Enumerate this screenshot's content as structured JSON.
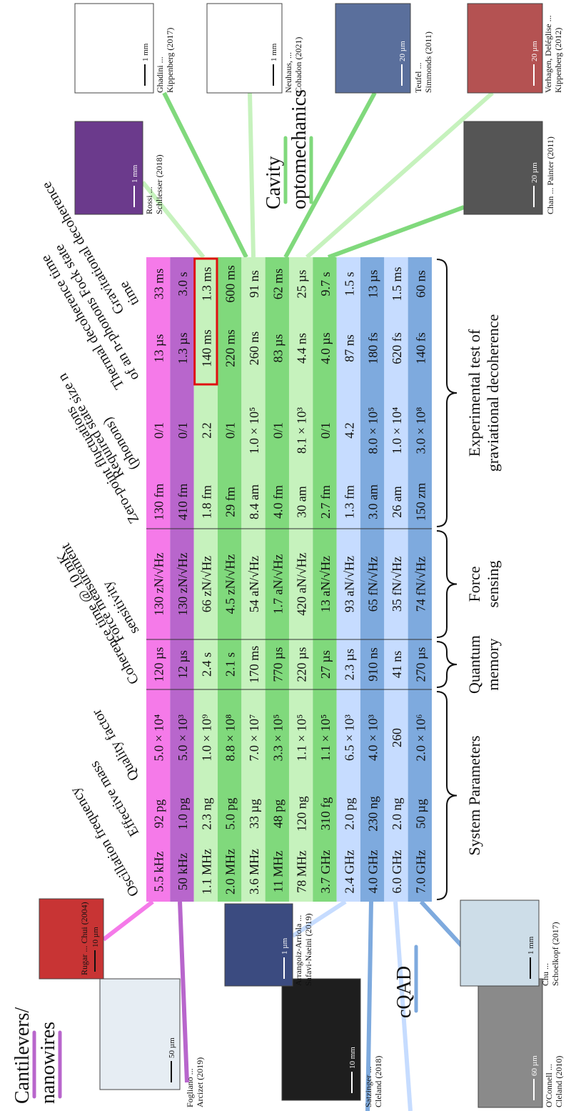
{
  "groups": [
    {
      "label": [
        "Cantilevers/",
        "nanowires"
      ]
    },
    {
      "label": [
        "cQAD"
      ]
    },
    {
      "label": [
        "Cavity",
        "optomechanics"
      ]
    }
  ],
  "table": {
    "headers": [
      [
        "Oscillation frequency"
      ],
      [
        "Effective mass"
      ],
      [
        "Quality factor"
      ],
      [
        "Coherence time @ 10 mK"
      ],
      [
        "Force measurement",
        "sensitivity"
      ],
      [
        "Zero-point fluctuations"
      ],
      [
        "Required state size n",
        "(phonons)"
      ],
      [
        "Thermal decoherence time",
        "of an n-phonons Fock state"
      ],
      [
        "Gravitational decoherence",
        "time"
      ]
    ],
    "rows": [
      [
        "5.5 kHz",
        "92 pg",
        "5.0 × 10⁴",
        "120 µs",
        "130 zN/√Hz",
        "130 fm",
        "0/1",
        "13 µs",
        "33 ms"
      ],
      [
        "50 kHz",
        "1.0 pg",
        "5.0 × 10³",
        "12 µs",
        "130 zN/√Hz",
        "410 fm",
        "0/1",
        "1.3 µs",
        "3.0 s"
      ],
      [
        "1.1 MHz",
        "2.3 ng",
        "1.0 × 10⁹",
        "2.4 s",
        "66 zN/√Hz",
        "1.8 fm",
        "2.2",
        "140 ms",
        "1.3 ms"
      ],
      [
        "2.0 MHz",
        "5.0 pg",
        "8.8 × 10⁸",
        "2.1 s",
        "4.5 zN/√Hz",
        "29 fm",
        "0/1",
        "220 ms",
        "600 ms"
      ],
      [
        "3.6 MHz",
        "33 µg",
        "7.0 × 10⁷",
        "170 ms",
        "54 aN/√Hz",
        "8.4 am",
        "1.0 × 10⁵",
        "260 ns",
        "91 ns"
      ],
      [
        "11 MHz",
        "48 pg",
        "3.3 × 10⁵",
        "770 µs",
        "1.7 aN/√Hz",
        "4.0 fm",
        "0/1",
        "83 µs",
        "62 ms"
      ],
      [
        "78 MHz",
        "120 ng",
        "1.1 × 10⁵",
        "220 µs",
        "420 aN/√Hz",
        "30 am",
        "8.1 × 10³",
        "4.4 ns",
        "25 µs"
      ],
      [
        "3.7 GHz",
        "310 fg",
        "1.1 × 10⁵",
        "27 µs",
        "13 aN/√Hz",
        "2.7 fm",
        "0/1",
        "4.0 µs",
        "9.7 s"
      ],
      [
        "2.4 GHz",
        "2.0 pg",
        "6.5 × 10³",
        "2.3 µs",
        "93 aN/√Hz",
        "1.3 fm",
        "4.2",
        "87 ns",
        "1.5 s"
      ],
      [
        "4.0 GHz",
        "230 ng",
        "4.0 × 10³",
        "910 ns",
        "65 fN/√Hz",
        "3.0 am",
        "8.0 × 10⁵",
        "180 fs",
        "13 µs"
      ],
      [
        "6.0 GHz",
        "2.0 ng",
        "260",
        "41 ns",
        "35 fN/√Hz",
        "26 am",
        "1.0 × 10⁴",
        "620 fs",
        "1.5 ms"
      ],
      [
        "7.0 GHz",
        "50 µg",
        "2.0 × 10⁶",
        "270 µs",
        "74 fN/√Hz",
        "150 zm",
        "3.0 × 10⁸",
        "140 fs",
        "60 ns"
      ]
    ]
  },
  "sections": [
    [
      "System Parameters"
    ],
    [
      "Quantum",
      "memory"
    ],
    [
      "Force",
      "sensing"
    ],
    [
      "Experimental test of",
      "graviational decoherence"
    ]
  ],
  "images": [
    {
      "caption": [
        "Fogliano ...",
        "Arcizet (2019)"
      ],
      "scale": "50 µm"
    },
    {
      "caption": [
        "Rugar ... Chui (2004)"
      ],
      "scale": "10 µm"
    },
    {
      "caption": [
        "Satzinger ...",
        "Cleland (2018)"
      ],
      "scale": "10 mm"
    },
    {
      "caption": [
        "Arrangoiz-Arriola ...",
        "Safavi-Naeini (2019)"
      ],
      "scale": "1 µm"
    },
    {
      "caption": [
        "O'Connell ...",
        "Cleland (2010)"
      ],
      "scale": "60 µm"
    },
    {
      "caption": [
        "Chu ...",
        "Schoelkopf (2017)"
      ],
      "scale": "1 mm"
    },
    {
      "caption": [
        "Rossi ...",
        "Schliesser (2018)"
      ],
      "scale": "1 mm"
    },
    {
      "caption": [
        "Ghadini ...",
        "Kippenberg (2017)"
      ],
      "scale": "1 mm"
    },
    {
      "caption": [
        "Neuhaus, ...",
        "Cohadon (2021)"
      ],
      "scale": "1 mm"
    },
    {
      "caption": [
        "Teufel ...",
        "Simmonds (2011)"
      ],
      "scale": "20 µm"
    },
    {
      "caption": [
        "Verhagen, Deléglise ...",
        "Kippenberg (2012)"
      ],
      "scale": "20 µm"
    },
    {
      "caption": [
        "Chan ... Painter (2011)"
      ],
      "scale": "20 µm"
    }
  ]
}
